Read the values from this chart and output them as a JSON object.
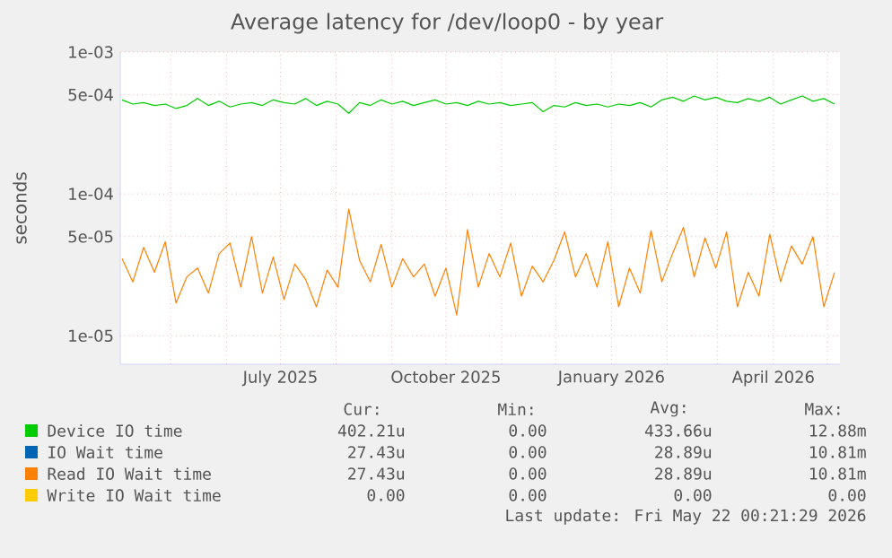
{
  "chart_data": {
    "type": "line",
    "title": "Average latency for /dev/loop0 - by year",
    "ylabel": "seconds",
    "x": [
      "2025-04-04",
      "2025-04-10",
      "2025-04-16",
      "2025-04-22",
      "2025-04-28",
      "2025-05-04",
      "2025-05-10",
      "2025-05-16",
      "2025-05-22",
      "2025-05-28",
      "2025-06-03",
      "2025-06-09",
      "2025-06-15",
      "2025-06-21",
      "2025-06-27",
      "2025-07-03",
      "2025-07-09",
      "2025-07-15",
      "2025-07-21",
      "2025-07-27",
      "2025-08-02",
      "2025-08-08",
      "2025-08-14",
      "2025-08-20",
      "2025-08-26",
      "2025-09-01",
      "2025-09-07",
      "2025-09-13",
      "2025-09-19",
      "2025-09-25",
      "2025-10-01",
      "2025-10-07",
      "2025-10-13",
      "2025-10-19",
      "2025-10-25",
      "2025-10-31",
      "2025-11-06",
      "2025-11-12",
      "2025-11-18",
      "2025-11-24",
      "2025-11-30",
      "2025-12-06",
      "2025-12-12",
      "2025-12-18",
      "2025-12-24",
      "2025-12-30",
      "2026-01-05",
      "2026-01-11",
      "2026-01-17",
      "2026-01-23",
      "2026-01-29",
      "2026-02-04",
      "2026-02-10",
      "2026-02-16",
      "2026-02-22",
      "2026-02-28",
      "2026-03-06",
      "2026-03-12",
      "2026-03-18",
      "2026-03-24",
      "2026-03-30",
      "2026-04-05",
      "2026-04-11",
      "2026-04-17",
      "2026-04-23",
      "2026-04-29",
      "2026-05-05"
    ],
    "series": [
      {
        "name": "Device IO time",
        "color": "#00cc00",
        "values": [
          0.00046,
          0.00043,
          0.00044,
          0.00042,
          0.00043,
          0.0004,
          0.00042,
          0.00047,
          0.00042,
          0.00045,
          0.00041,
          0.00043,
          0.00044,
          0.00042,
          0.00046,
          0.00044,
          0.00043,
          0.00047,
          0.00042,
          0.00045,
          0.00043,
          0.00037,
          0.00044,
          0.00042,
          0.00046,
          0.00043,
          0.00045,
          0.00042,
          0.00044,
          0.00046,
          0.00043,
          0.00044,
          0.00042,
          0.00045,
          0.00043,
          0.00044,
          0.00042,
          0.00043,
          0.00044,
          0.00038,
          0.00042,
          0.00041,
          0.00044,
          0.00042,
          0.00043,
          0.00041,
          0.00043,
          0.00042,
          0.00044,
          0.00041,
          0.00046,
          0.00048,
          0.00045,
          0.00049,
          0.00046,
          0.00048,
          0.00045,
          0.00044,
          0.00047,
          0.00045,
          0.00048,
          0.00043,
          0.00046,
          0.00049,
          0.00045,
          0.00047,
          0.00043
        ]
      },
      {
        "name": "IO Wait time",
        "color": "#0066b3",
        "values": [
          null,
          null,
          null,
          null,
          null,
          null,
          null,
          null,
          null,
          null,
          null,
          null,
          null,
          null,
          null,
          null,
          null,
          null,
          null,
          null,
          null,
          null,
          null,
          null,
          null,
          null,
          null,
          null,
          null,
          null,
          null,
          null,
          null,
          null,
          null,
          null,
          null,
          null,
          null,
          null,
          null,
          null,
          null,
          null,
          null,
          null,
          null,
          null,
          null,
          null,
          null,
          null,
          null,
          null,
          null,
          null,
          null,
          null,
          null,
          null,
          null,
          null,
          null,
          null,
          null,
          null,
          null
        ]
      },
      {
        "name": "Read IO Wait time",
        "color": "#ff8000",
        "values": [
          3.5e-05,
          2.4e-05,
          4.2e-05,
          2.8e-05,
          4.6e-05,
          1.7e-05,
          2.6e-05,
          3e-05,
          2e-05,
          3.8e-05,
          4.5e-05,
          2.2e-05,
          5e-05,
          2e-05,
          3.6e-05,
          1.8e-05,
          3.2e-05,
          2.5e-05,
          1.6e-05,
          2.9e-05,
          2.2e-05,
          7.8e-05,
          3.4e-05,
          2.4e-05,
          4.4e-05,
          2.2e-05,
          3.5e-05,
          2.6e-05,
          3.2e-05,
          1.9e-05,
          3e-05,
          1.4e-05,
          5.6e-05,
          2.2e-05,
          3.8e-05,
          2.6e-05,
          4.5e-05,
          1.9e-05,
          3.1e-05,
          2.4e-05,
          3.4e-05,
          5.4e-05,
          2.6e-05,
          3.8e-05,
          2.2e-05,
          4.6e-05,
          1.6e-05,
          3e-05,
          2e-05,
          5.5e-05,
          2.4e-05,
          3.8e-05,
          5.8e-05,
          2.6e-05,
          4.9e-05,
          3e-05,
          5.4e-05,
          1.6e-05,
          2.8e-05,
          1.9e-05,
          5.2e-05,
          2.4e-05,
          4.3e-05,
          3.2e-05,
          5e-05,
          1.6e-05,
          2.8e-05
        ]
      },
      {
        "name": "Write IO Wait time",
        "color": "#ffcc00",
        "values": [
          null,
          null,
          null,
          null,
          null,
          null,
          null,
          null,
          null,
          null,
          null,
          null,
          null,
          null,
          null,
          null,
          null,
          null,
          null,
          null,
          null,
          null,
          null,
          null,
          null,
          null,
          null,
          null,
          null,
          null,
          null,
          null,
          null,
          null,
          null,
          null,
          null,
          null,
          null,
          null,
          null,
          null,
          null,
          null,
          null,
          null,
          null,
          null,
          null,
          null,
          null,
          null,
          null,
          null,
          null,
          null,
          null,
          null,
          null,
          null,
          null,
          null,
          null,
          null,
          null,
          null,
          null
        ]
      }
    ],
    "log": "y",
    "ylim": [
      6.3e-06,
      0.001
    ],
    "yticks": [
      {
        "value": 1e-05,
        "label": "1e-05"
      },
      {
        "value": 5e-05,
        "label": "5e-05"
      },
      {
        "value": 0.0001,
        "label": "1e-04"
      },
      {
        "value": 0.0005,
        "label": "5e-04"
      },
      {
        "value": 0.001,
        "label": "1e-03"
      }
    ],
    "xlim": [
      "2025-04-03",
      "2026-05-08"
    ],
    "xticks": [
      {
        "value": "2025-05-01",
        "label": null
      },
      {
        "value": "2025-06-01",
        "label": null
      },
      {
        "value": "2025-07-01",
        "label": "July 2025"
      },
      {
        "value": "2025-08-01",
        "label": null
      },
      {
        "value": "2025-09-01",
        "label": null
      },
      {
        "value": "2025-10-01",
        "label": "October 2025"
      },
      {
        "value": "2025-11-01",
        "label": null
      },
      {
        "value": "2025-12-01",
        "label": null
      },
      {
        "value": "2026-01-01",
        "label": "January 2026"
      },
      {
        "value": "2026-02-01",
        "label": null
      },
      {
        "value": "2026-03-01",
        "label": null
      },
      {
        "value": "2026-04-01",
        "label": "April 2026"
      },
      {
        "value": "2026-05-01",
        "label": null
      }
    ],
    "grid": true,
    "legend": "bottom",
    "annotations": [
      "Cur:",
      "Min:",
      "Avg:",
      "Max:",
      "402.21u",
      "0.00",
      "433.66u",
      "12.88m",
      "27.43u",
      "0.00",
      "28.89u",
      "10.81m",
      "27.43u",
      "0.00",
      "28.89u",
      "10.81m",
      "0.00",
      "0.00",
      "0.00",
      "0.00",
      "Last update: Fri May 22 00:21:29 2026"
    ]
  }
}
